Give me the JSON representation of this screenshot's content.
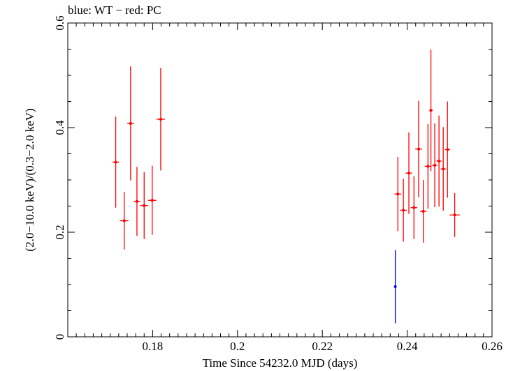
{
  "chart_data": {
    "type": "scatter",
    "title": "blue: WT − red: PC",
    "xlabel": "Time Since 54232.0 MJD (days)",
    "ylabel": "(2.0−10.0 keV)/(0.3−2.0 keV)",
    "xlim": [
      0.16,
      0.26
    ],
    "ylim": [
      0,
      0.6
    ],
    "xticks": [
      0.18,
      0.2,
      0.22,
      0.24,
      0.26
    ],
    "xtick_labels": [
      "0.18",
      "0.2",
      "0.22",
      "0.24",
      "0.26"
    ],
    "yticks": [
      0,
      0.2,
      0.4,
      0.6
    ],
    "ytick_labels": [
      "0",
      "0.2",
      "0.4",
      "0.6"
    ],
    "grid": false,
    "legend": "none",
    "series": [
      {
        "color": "#ff0000",
        "points": [
          {
            "x": 0.1713,
            "y": 0.334,
            "xerr": 0.0008,
            "ylo": 0.247,
            "yhi": 0.421
          },
          {
            "x": 0.1733,
            "y": 0.222,
            "xerr": 0.001,
            "ylo": 0.167,
            "yhi": 0.277
          },
          {
            "x": 0.1748,
            "y": 0.408,
            "xerr": 0.0008,
            "ylo": 0.299,
            "yhi": 0.517
          },
          {
            "x": 0.1763,
            "y": 0.259,
            "xerr": 0.0008,
            "ylo": 0.193,
            "yhi": 0.325
          },
          {
            "x": 0.178,
            "y": 0.251,
            "xerr": 0.001,
            "ylo": 0.187,
            "yhi": 0.315
          },
          {
            "x": 0.1799,
            "y": 0.261,
            "xerr": 0.001,
            "ylo": 0.195,
            "yhi": 0.327
          },
          {
            "x": 0.1819,
            "y": 0.416,
            "xerr": 0.001,
            "ylo": 0.318,
            "yhi": 0.514
          },
          {
            "x": 0.2378,
            "y": 0.273,
            "xerr": 0.0008,
            "ylo": 0.202,
            "yhi": 0.344
          },
          {
            "x": 0.2391,
            "y": 0.242,
            "xerr": 0.0008,
            "ylo": 0.182,
            "yhi": 0.302
          },
          {
            "x": 0.2404,
            "y": 0.313,
            "xerr": 0.0008,
            "ylo": 0.235,
            "yhi": 0.391
          },
          {
            "x": 0.2416,
            "y": 0.247,
            "xerr": 0.0008,
            "ylo": 0.187,
            "yhi": 0.307
          },
          {
            "x": 0.2427,
            "y": 0.359,
            "xerr": 0.0008,
            "ylo": 0.267,
            "yhi": 0.451
          },
          {
            "x": 0.2438,
            "y": 0.24,
            "xerr": 0.0008,
            "ylo": 0.18,
            "yhi": 0.3
          },
          {
            "x": 0.2449,
            "y": 0.326,
            "xerr": 0.0008,
            "ylo": 0.245,
            "yhi": 0.407
          },
          {
            "x": 0.2456,
            "y": 0.433,
            "xerr": 0.0004,
            "ylo": 0.317,
            "yhi": 0.549
          },
          {
            "x": 0.2465,
            "y": 0.328,
            "xerr": 0.0006,
            "ylo": 0.248,
            "yhi": 0.408
          },
          {
            "x": 0.2475,
            "y": 0.336,
            "xerr": 0.0006,
            "ylo": 0.249,
            "yhi": 0.423
          },
          {
            "x": 0.2485,
            "y": 0.321,
            "xerr": 0.0006,
            "ylo": 0.241,
            "yhi": 0.401
          },
          {
            "x": 0.2495,
            "y": 0.358,
            "xerr": 0.0006,
            "ylo": 0.266,
            "yhi": 0.45
          },
          {
            "x": 0.2512,
            "y": 0.233,
            "xerr": 0.0012,
            "ylo": 0.191,
            "yhi": 0.275
          }
        ]
      },
      {
        "color": "#0000ff",
        "points": [
          {
            "x": 0.2372,
            "y": 0.096,
            "xerr": 0.0,
            "ylo": 0.026,
            "yhi": 0.166
          }
        ]
      }
    ]
  }
}
